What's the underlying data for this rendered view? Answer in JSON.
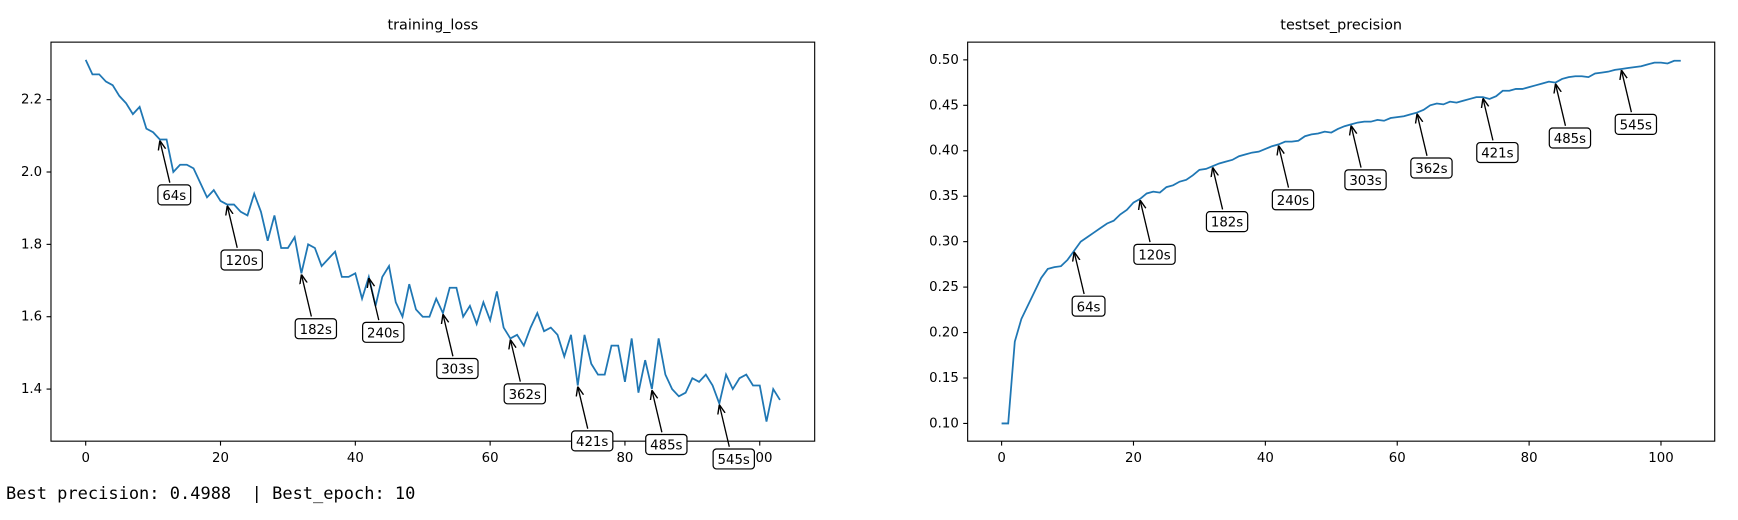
{
  "chart_data": [
    {
      "type": "line",
      "title": "training_loss",
      "x": [
        0,
        1,
        2,
        3,
        4,
        5,
        6,
        7,
        8,
        9,
        10,
        11,
        12,
        13,
        14,
        15,
        16,
        17,
        18,
        19,
        20,
        21,
        22,
        23,
        24,
        25,
        26,
        27,
        28,
        29,
        30,
        31,
        32,
        33,
        34,
        35,
        36,
        37,
        38,
        39,
        40,
        41,
        42,
        43,
        44,
        45,
        46,
        47,
        48,
        49,
        50,
        51,
        52,
        53,
        54,
        55,
        56,
        57,
        58,
        59,
        60,
        61,
        62,
        63,
        64,
        65,
        66,
        67,
        68,
        69,
        70,
        71,
        72,
        73,
        74,
        75,
        76,
        77,
        78,
        79,
        80,
        81,
        82,
        83,
        84,
        85,
        86,
        87,
        88,
        89,
        90,
        91,
        92,
        93,
        94,
        95,
        96,
        97,
        98,
        99,
        100,
        101,
        102,
        103
      ],
      "values": [
        2.31,
        2.27,
        2.27,
        2.25,
        2.24,
        2.21,
        2.19,
        2.16,
        2.18,
        2.12,
        2.11,
        2.09,
        2.09,
        2.0,
        2.02,
        2.02,
        2.01,
        1.97,
        1.93,
        1.95,
        1.92,
        1.91,
        1.91,
        1.89,
        1.88,
        1.94,
        1.89,
        1.81,
        1.88,
        1.79,
        1.79,
        1.82,
        1.72,
        1.8,
        1.79,
        1.74,
        1.76,
        1.78,
        1.71,
        1.71,
        1.72,
        1.65,
        1.71,
        1.63,
        1.71,
        1.74,
        1.64,
        1.6,
        1.69,
        1.62,
        1.6,
        1.6,
        1.65,
        1.61,
        1.68,
        1.68,
        1.6,
        1.63,
        1.58,
        1.64,
        1.59,
        1.67,
        1.57,
        1.54,
        1.55,
        1.52,
        1.57,
        1.61,
        1.56,
        1.57,
        1.55,
        1.49,
        1.55,
        1.41,
        1.55,
        1.47,
        1.44,
        1.44,
        1.52,
        1.52,
        1.42,
        1.54,
        1.39,
        1.48,
        1.4,
        1.54,
        1.44,
        1.4,
        1.38,
        1.39,
        1.43,
        1.42,
        1.44,
        1.41,
        1.36,
        1.44,
        1.4,
        1.43,
        1.44,
        1.41,
        1.41,
        1.31,
        1.4,
        1.37
      ],
      "color": "#1f77b4",
      "xlim": [
        -5.15,
        108.15
      ],
      "xticks": [
        0,
        20,
        40,
        60,
        80,
        100
      ],
      "ylim": [
        1.256,
        2.359
      ],
      "yticks": [
        1.4,
        1.6,
        1.8,
        {
          "value": 2,
          "label": "2.0"
        },
        2.2
      ],
      "grid": false,
      "annotations": [
        {
          "text": "64s",
          "x": 11,
          "y": 2.09
        },
        {
          "text": "120s",
          "x": 21,
          "y": 1.91
        },
        {
          "text": "182s",
          "x": 32,
          "y": 1.72
        },
        {
          "text": "240s",
          "x": 42,
          "y": 1.71
        },
        {
          "text": "303s",
          "x": 53,
          "y": 1.61
        },
        {
          "text": "362s",
          "x": 63,
          "y": 1.54
        },
        {
          "text": "421s",
          "x": 73,
          "y": 1.41
        },
        {
          "text": "485s",
          "x": 84,
          "y": 1.4
        },
        {
          "text": "545s",
          "x": 94,
          "y": 1.36
        }
      ]
    },
    {
      "type": "line",
      "title": "testset_precision",
      "x": [
        0,
        1,
        2,
        3,
        4,
        5,
        6,
        7,
        8,
        9,
        10,
        11,
        12,
        13,
        14,
        15,
        16,
        17,
        18,
        19,
        20,
        21,
        22,
        23,
        24,
        25,
        26,
        27,
        28,
        29,
        30,
        31,
        32,
        33,
        34,
        35,
        36,
        37,
        38,
        39,
        40,
        41,
        42,
        43,
        44,
        45,
        46,
        47,
        48,
        49,
        50,
        51,
        52,
        53,
        54,
        55,
        56,
        57,
        58,
        59,
        60,
        61,
        62,
        63,
        64,
        65,
        66,
        67,
        68,
        69,
        70,
        71,
        72,
        73,
        74,
        75,
        76,
        77,
        78,
        79,
        80,
        81,
        82,
        83,
        84,
        85,
        86,
        87,
        88,
        89,
        90,
        91,
        92,
        93,
        94,
        95,
        96,
        97,
        98,
        99,
        100,
        101,
        102,
        103
      ],
      "values": [
        0.1,
        0.1,
        0.19,
        0.215,
        0.23,
        0.245,
        0.26,
        0.27,
        0.272,
        0.273,
        0.28,
        0.29,
        0.3,
        0.305,
        0.31,
        0.315,
        0.32,
        0.323,
        0.33,
        0.335,
        0.343,
        0.347,
        0.353,
        0.355,
        0.354,
        0.36,
        0.362,
        0.366,
        0.368,
        0.373,
        0.379,
        0.38,
        0.383,
        0.386,
        0.388,
        0.39,
        0.394,
        0.396,
        0.398,
        0.399,
        0.402,
        0.405,
        0.407,
        0.41,
        0.41,
        0.411,
        0.416,
        0.418,
        0.419,
        0.421,
        0.42,
        0.424,
        0.427,
        0.429,
        0.431,
        0.432,
        0.432,
        0.434,
        0.433,
        0.436,
        0.437,
        0.438,
        0.44,
        0.442,
        0.445,
        0.45,
        0.452,
        0.451,
        0.454,
        0.453,
        0.455,
        0.457,
        0.459,
        0.459,
        0.457,
        0.46,
        0.466,
        0.466,
        0.468,
        0.468,
        0.47,
        0.472,
        0.474,
        0.476,
        0.475,
        0.479,
        0.481,
        0.482,
        0.482,
        0.481,
        0.485,
        0.486,
        0.487,
        0.489,
        0.49,
        0.491,
        0.492,
        0.493,
        0.495,
        0.497,
        0.497,
        0.496,
        0.499,
        0.499
      ],
      "color": "#1f77b4",
      "xlim": [
        -5.15,
        108.15
      ],
      "xticks": [
        0,
        20,
        40,
        60,
        80,
        100
      ],
      "ylim": [
        0.0805,
        0.5195
      ],
      "yticks": [
        {
          "value": 0.1,
          "label": "0.10"
        },
        0.15,
        {
          "value": 0.2,
          "label": "0.20"
        },
        0.25,
        {
          "value": 0.3,
          "label": "0.30"
        },
        0.35,
        {
          "value": 0.4,
          "label": "0.40"
        },
        0.45,
        {
          "value": 0.5,
          "label": "0.50"
        }
      ],
      "grid": false,
      "annotations": [
        {
          "text": "64s",
          "x": 11,
          "y": 0.29
        },
        {
          "text": "120s",
          "x": 21,
          "y": 0.347
        },
        {
          "text": "182s",
          "x": 32,
          "y": 0.383
        },
        {
          "text": "240s",
          "x": 42,
          "y": 0.407
        },
        {
          "text": "303s",
          "x": 53,
          "y": 0.429
        },
        {
          "text": "362s",
          "x": 63,
          "y": 0.442
        },
        {
          "text": "421s",
          "x": 73,
          "y": 0.459
        },
        {
          "text": "485s",
          "x": 84,
          "y": 0.475
        },
        {
          "text": "545s",
          "x": 94,
          "y": 0.49
        }
      ]
    }
  ],
  "output_text": "Best precision: 0.4988  | Best_epoch: 10"
}
